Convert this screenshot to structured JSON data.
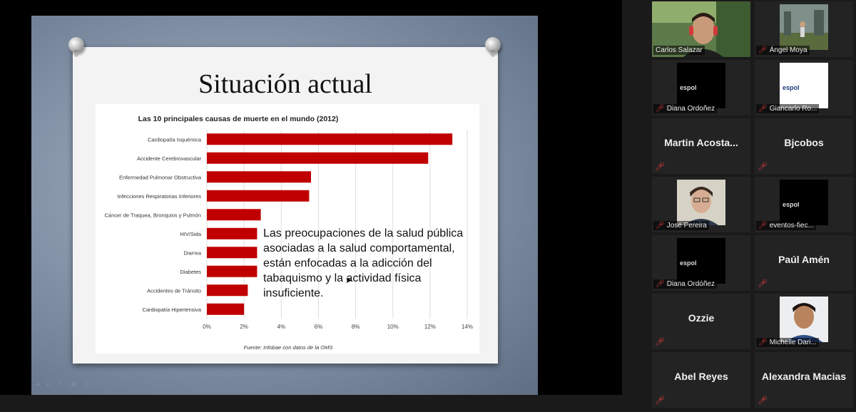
{
  "slide": {
    "title": "Situación actual",
    "overlay_text": "Las preocupaciones de la salud pública asociadas a la salud comportamental, están enfocadas a la adicción del tabaquismo y la actividad física insuficiente.",
    "controls": [
      "◂",
      "▸",
      "✎",
      "▣",
      "⊕",
      "⋯"
    ]
  },
  "chart_data": {
    "type": "bar",
    "orientation": "horizontal",
    "title": "Las 10 principales causas de muerte en el mundo (2012)",
    "categories": [
      "Cardiopatía Isquémica",
      "Accidente Cerebrovascular",
      "Enfermedad Pulmonar Obstructiva",
      "Infecciones Respiratorias Inferiores",
      "Cáncer de Traquea, Bronquios y Pulmón",
      "HIV/Sida",
      "Diarrea",
      "Diabetes",
      "Accidentes de Tránsito",
      "Cardiopatía Hipertensiva"
    ],
    "values": [
      13.2,
      11.9,
      5.6,
      5.5,
      2.9,
      2.7,
      2.7,
      2.7,
      2.2,
      2.0
    ],
    "xlim": [
      0,
      14
    ],
    "xticks": [
      "0%",
      "2%",
      "4%",
      "6%",
      "8%",
      "10%",
      "12%",
      "14%"
    ],
    "grid": true,
    "bar_color": "#c00000",
    "source": "Fuente: Infobae con datos de la OMS"
  },
  "participants": [
    {
      "name": "Carlos Salazar",
      "kind": "video",
      "active": true
    },
    {
      "name": "Ángel Moya",
      "kind": "video"
    },
    {
      "name": "Diana Ordoñez",
      "kind": "espol-black"
    },
    {
      "name": "Giancarlo Ro...",
      "kind": "espol-white"
    },
    {
      "display": "Martin  Acosta...",
      "kind": "name"
    },
    {
      "display": "Bjcobos",
      "kind": "name"
    },
    {
      "name": "José Pereira",
      "kind": "video"
    },
    {
      "name": "eventos-fiec...",
      "kind": "espol-black"
    },
    {
      "name": "Diana Ordóñez",
      "kind": "espol-black"
    },
    {
      "display": "Paúl Amén",
      "kind": "name"
    },
    {
      "display": "Ozzie",
      "kind": "name"
    },
    {
      "name": "Michelle Dari...",
      "kind": "video"
    },
    {
      "display": "Abel Reyes",
      "kind": "name"
    },
    {
      "display": "Alexandra Macias",
      "kind": "name"
    }
  ],
  "espol_logo": "espol",
  "icons": {
    "muted_mic": "muted-mic-icon"
  }
}
